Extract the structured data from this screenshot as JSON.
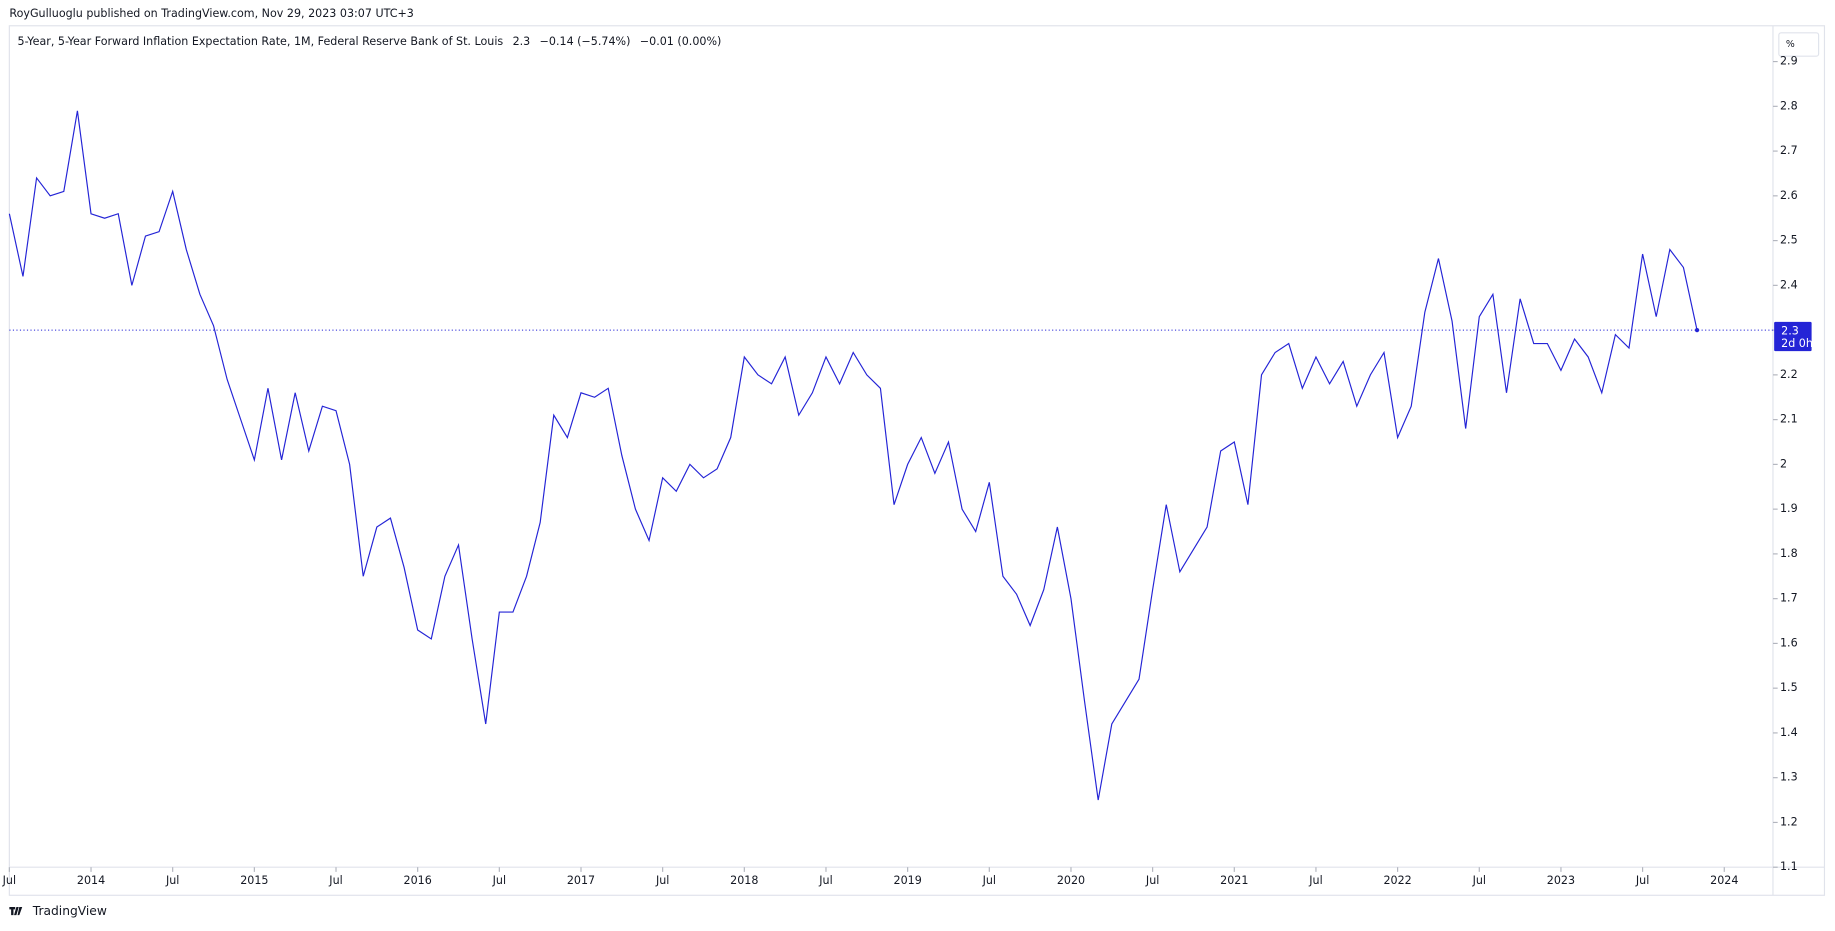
{
  "header": {
    "publisher": "RoyGulluoglu published on TradingView.com, Nov 29, 2023 03:07 UTC+3"
  },
  "footer": {
    "brand": "TradingView"
  },
  "chart_data": {
    "type": "line",
    "unit": "%",
    "change": "−0.14 (−5.74%)",
    "change2": "−0.01 (0.00%)",
    "countdown": "2d 0h",
    "x": [
      "2013-07",
      "2013-08",
      "2013-09",
      "2013-10",
      "2013-11",
      "2013-12",
      "2014-01",
      "2014-02",
      "2014-03",
      "2014-04",
      "2014-05",
      "2014-06",
      "2014-07",
      "2014-08",
      "2014-09",
      "2014-10",
      "2014-11",
      "2014-12",
      "2015-01",
      "2015-02",
      "2015-03",
      "2015-04",
      "2015-05",
      "2015-06",
      "2015-07",
      "2015-08",
      "2015-09",
      "2015-10",
      "2015-11",
      "2015-12",
      "2016-01",
      "2016-02",
      "2016-03",
      "2016-04",
      "2016-05",
      "2016-06",
      "2016-07",
      "2016-08",
      "2016-09",
      "2016-10",
      "2016-11",
      "2016-12",
      "2017-01",
      "2017-02",
      "2017-03",
      "2017-04",
      "2017-05",
      "2017-06",
      "2017-07",
      "2017-08",
      "2017-09",
      "2017-10",
      "2017-11",
      "2017-12",
      "2018-01",
      "2018-02",
      "2018-03",
      "2018-04",
      "2018-05",
      "2018-06",
      "2018-07",
      "2018-08",
      "2018-09",
      "2018-10",
      "2018-11",
      "2018-12",
      "2019-01",
      "2019-02",
      "2019-03",
      "2019-04",
      "2019-05",
      "2019-06",
      "2019-07",
      "2019-08",
      "2019-09",
      "2019-10",
      "2019-11",
      "2019-12",
      "2020-01",
      "2020-02",
      "2020-03",
      "2020-04",
      "2020-05",
      "2020-06",
      "2020-07",
      "2020-08",
      "2020-09",
      "2020-10",
      "2020-11",
      "2020-12",
      "2021-01",
      "2021-02",
      "2021-03",
      "2021-04",
      "2021-05",
      "2021-06",
      "2021-07",
      "2021-08",
      "2021-09",
      "2021-10",
      "2021-11",
      "2021-12",
      "2022-01",
      "2022-02",
      "2022-03",
      "2022-04",
      "2022-05",
      "2022-06",
      "2022-07",
      "2022-08",
      "2022-09",
      "2022-10",
      "2022-11",
      "2022-12",
      "2023-01",
      "2023-02",
      "2023-03",
      "2023-04",
      "2023-05",
      "2023-06",
      "2023-07",
      "2023-08",
      "2023-09",
      "2023-10",
      "2023-11"
    ],
    "series": [
      {
        "name": "5-Year, 5-Year Forward Inflation Expectation Rate, 1M, Federal Reserve Bank of St. Louis",
        "color": "#2424d6",
        "values": [
          2.56,
          2.42,
          2.64,
          2.6,
          2.61,
          2.79,
          2.56,
          2.55,
          2.56,
          2.4,
          2.51,
          2.52,
          2.61,
          2.48,
          2.38,
          2.31,
          2.19,
          2.1,
          2.01,
          2.17,
          2.01,
          2.16,
          2.03,
          2.13,
          2.12,
          2.0,
          1.75,
          1.86,
          1.88,
          1.77,
          1.63,
          1.61,
          1.75,
          1.82,
          1.61,
          1.42,
          1.67,
          1.67,
          1.75,
          1.87,
          2.11,
          2.06,
          2.16,
          2.15,
          2.17,
          2.02,
          1.9,
          1.83,
          1.97,
          1.94,
          2.0,
          1.97,
          1.99,
          2.06,
          2.24,
          2.2,
          2.18,
          2.24,
          2.11,
          2.16,
          2.24,
          2.18,
          2.25,
          2.2,
          2.17,
          1.91,
          2.0,
          2.06,
          1.98,
          2.05,
          1.9,
          1.85,
          1.96,
          1.75,
          1.71,
          1.64,
          1.72,
          1.86,
          1.7,
          1.47,
          1.25,
          1.42,
          1.47,
          1.52,
          1.72,
          1.91,
          1.76,
          1.81,
          1.86,
          2.03,
          2.05,
          1.91,
          2.2,
          2.25,
          2.27,
          2.17,
          2.24,
          2.18,
          2.23,
          2.13,
          2.2,
          2.25,
          2.06,
          2.13,
          2.34,
          2.46,
          2.32,
          2.08,
          2.33,
          2.38,
          2.16,
          2.37,
          2.27,
          2.27,
          2.21,
          2.28,
          2.24,
          2.16,
          2.29,
          2.26,
          2.47,
          2.33,
          2.48,
          2.44,
          2.3
        ]
      }
    ],
    "ylim": [
      1.1,
      2.98
    ],
    "yticks": [
      1.1,
      1.2,
      1.3,
      1.4,
      1.5,
      1.6,
      1.7,
      1.8,
      1.9,
      2,
      2.1,
      2.2,
      2.3,
      2.4,
      2.5,
      2.6,
      2.7,
      2.8,
      2.9
    ],
    "xticks": [
      {
        "value": "2013-07",
        "label": "Jul"
      },
      {
        "value": "2014-01",
        "label": "2014"
      },
      {
        "value": "2014-07",
        "label": "Jul"
      },
      {
        "value": "2015-01",
        "label": "2015"
      },
      {
        "value": "2015-07",
        "label": "Jul"
      },
      {
        "value": "2016-01",
        "label": "2016"
      },
      {
        "value": "2016-07",
        "label": "Jul"
      },
      {
        "value": "2017-01",
        "label": "2017"
      },
      {
        "value": "2017-07",
        "label": "Jul"
      },
      {
        "value": "2018-01",
        "label": "2018"
      },
      {
        "value": "2018-07",
        "label": "Jul"
      },
      {
        "value": "2019-01",
        "label": "2019"
      },
      {
        "value": "2019-07",
        "label": "Jul"
      },
      {
        "value": "2020-01",
        "label": "2020"
      },
      {
        "value": "2020-07",
        "label": "Jul"
      },
      {
        "value": "2021-01",
        "label": "2021"
      },
      {
        "value": "2021-07",
        "label": "Jul"
      },
      {
        "value": "2022-01",
        "label": "2022"
      },
      {
        "value": "2022-07",
        "label": "Jul"
      },
      {
        "value": "2023-01",
        "label": "2023"
      },
      {
        "value": "2023-07",
        "label": "Jul"
      },
      {
        "value": "2024-01",
        "label": "2024"
      }
    ]
  }
}
